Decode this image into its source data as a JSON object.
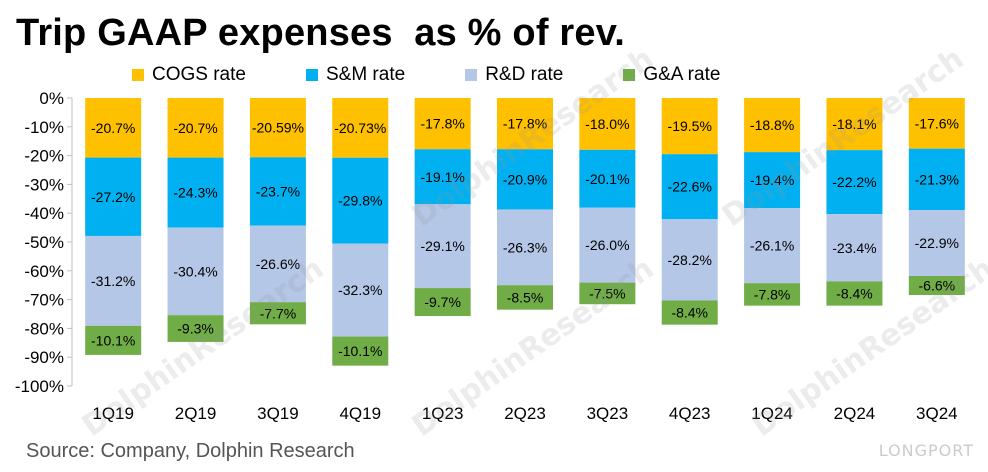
{
  "title": "Trip GAAP expenses  as % of rev.",
  "source": "Source: Company, Dolphin Research",
  "watermark": "DolphinResearch",
  "brand": "LONGPORT",
  "colors": {
    "cogs": "#FFC000",
    "sm": "#00B0F0",
    "rd": "#B4C7E7",
    "ga": "#70AD47"
  },
  "chart_data": {
    "type": "bar",
    "stacked": true,
    "categories": [
      "1Q19",
      "2Q19",
      "3Q19",
      "4Q19",
      "1Q23",
      "2Q23",
      "3Q23",
      "4Q23",
      "1Q24",
      "2Q24",
      "3Q24"
    ],
    "series": [
      {
        "name": "COGS rate",
        "values": [
          -20.7,
          -20.7,
          -20.59,
          -20.73,
          -17.8,
          -17.8,
          -18.0,
          -19.5,
          -18.8,
          -18.1,
          -17.6
        ],
        "labels": [
          "-20.7%",
          "-20.7%",
          "-20.59%",
          "-20.73%",
          "-17.8%",
          "-17.8%",
          "-18.0%",
          "-19.5%",
          "-18.8%",
          "-18.1%",
          "-17.6%"
        ]
      },
      {
        "name": "S&M rate",
        "values": [
          -27.2,
          -24.3,
          -23.7,
          -29.8,
          -19.1,
          -20.9,
          -20.1,
          -22.6,
          -19.4,
          -22.2,
          -21.3
        ],
        "labels": [
          "-27.2%",
          "-24.3%",
          "-23.7%",
          "-29.8%",
          "-19.1%",
          "-20.9%",
          "-20.1%",
          "-22.6%",
          "-19.4%",
          "-22.2%",
          "-21.3%"
        ]
      },
      {
        "name": "R&D rate",
        "values": [
          -31.2,
          -30.4,
          -26.6,
          -32.3,
          -29.1,
          -26.3,
          -26.0,
          -28.2,
          -26.1,
          -23.4,
          -22.9
        ],
        "labels": [
          "-31.2%",
          "-30.4%",
          "-26.6%",
          "-32.3%",
          "-29.1%",
          "-26.3%",
          "-26.0%",
          "-28.2%",
          "-26.1%",
          "-23.4%",
          "-22.9%"
        ]
      },
      {
        "name": "G&A rate",
        "values": [
          -10.1,
          -9.3,
          -7.7,
          -10.1,
          -9.7,
          -8.5,
          -7.5,
          -8.4,
          -7.8,
          -8.4,
          -6.6
        ],
        "labels": [
          "-10.1%",
          "-9.3%",
          "-7.7%",
          "-10.1%",
          "-9.7%",
          "-8.5%",
          "-7.5%",
          "-8.4%",
          "-7.8%",
          "-8.4%",
          "-6.6%"
        ]
      }
    ],
    "ylim": [
      -100,
      0
    ],
    "yticks": [
      0,
      -10,
      -20,
      -30,
      -40,
      -50,
      -60,
      -70,
      -80,
      -90,
      -100
    ],
    "ytick_labels": [
      "0%",
      "-10%",
      "-20%",
      "-30%",
      "-40%",
      "-50%",
      "-60%",
      "-70%",
      "-80%",
      "-90%",
      "-100%"
    ],
    "xlabel": "",
    "ylabel": "",
    "grid": false,
    "legend": "top"
  }
}
